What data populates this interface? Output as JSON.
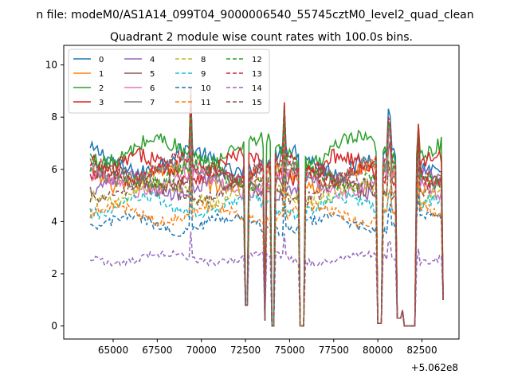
{
  "chart_data": {
    "type": "line",
    "suptitle": "n file: modeM0/AS1A14_099T04_9000006540_55745cztM0_level2_quad_clean",
    "title": "Quadrant 2 module wise count rates with 100.0s bins.",
    "xlabel": "",
    "ylabel": "",
    "x_offset_label": "+5.062e8",
    "xlim": [
      62200,
      84600
    ],
    "ylim": [
      -0.5,
      10.75
    ],
    "x_ticks": [
      65000,
      67500,
      70000,
      72500,
      75000,
      77500,
      80000,
      82500
    ],
    "x_tick_labels": [
      "65000",
      "67500",
      "70000",
      "72500",
      "75000",
      "77500",
      "80000",
      "82500"
    ],
    "y_ticks": [
      0,
      2,
      4,
      6,
      8,
      10
    ],
    "y_tick_labels": [
      "0",
      "2",
      "4",
      "6",
      "8",
      "10"
    ],
    "grid": false,
    "legend_position": "upper-left",
    "legend_columns": 4,
    "x_range": [
      63700,
      83700
    ],
    "bin_seconds": 100.0,
    "dropouts": [
      {
        "start": 72500,
        "end": 72650,
        "value": 0.8
      },
      {
        "start": 73550,
        "end": 73650,
        "value": 0.2
      },
      {
        "start": 74000,
        "end": 74100,
        "value": 0.0
      },
      {
        "start": 75550,
        "end": 75850,
        "value": 0.0
      },
      {
        "start": 80000,
        "end": 80200,
        "value": 0.1
      },
      {
        "start": 81100,
        "end": 81300,
        "value": 0.3
      },
      {
        "start": 81400,
        "end": 81500,
        "value": 0.6
      },
      {
        "start": 81500,
        "end": 82100,
        "value": 0.0
      },
      {
        "start": 83650,
        "end": 83700,
        "value": 1.0
      }
    ],
    "spikes": [
      {
        "x": 69400,
        "factor": 1.35
      },
      {
        "x": 74700,
        "factor": 1.3
      },
      {
        "x": 80650,
        "factor": 1.2
      },
      {
        "x": 82300,
        "factor": 1.15
      }
    ],
    "series": [
      {
        "name": "0",
        "color": "#1f77b4",
        "dashed": false,
        "level": 6.3
      },
      {
        "name": "1",
        "color": "#ff7f0e",
        "dashed": false,
        "level": 5.7
      },
      {
        "name": "2",
        "color": "#2ca02c",
        "dashed": false,
        "level": 6.7
      },
      {
        "name": "3",
        "color": "#d62728",
        "dashed": false,
        "level": 6.1
      },
      {
        "name": "4",
        "color": "#9467bd",
        "dashed": false,
        "level": 5.4
      },
      {
        "name": "5",
        "color": "#8c564b",
        "dashed": false,
        "level": 5.6
      },
      {
        "name": "6",
        "color": "#e377c2",
        "dashed": false,
        "level": 5.5
      },
      {
        "name": "7",
        "color": "#7f7f7f",
        "dashed": false,
        "level": 5.9
      },
      {
        "name": "8",
        "color": "#bcbd22",
        "dashed": true,
        "level": 5.1
      },
      {
        "name": "9",
        "color": "#17becf",
        "dashed": true,
        "level": 4.6
      },
      {
        "name": "10",
        "color": "#1f77b4",
        "dashed": true,
        "level": 3.9
      },
      {
        "name": "11",
        "color": "#ff7f0e",
        "dashed": true,
        "level": 4.3
      },
      {
        "name": "12",
        "color": "#2ca02c",
        "dashed": true,
        "level": 5.8
      },
      {
        "name": "13",
        "color": "#d62728",
        "dashed": true,
        "level": 6.0
      },
      {
        "name": "14",
        "color": "#9467bd",
        "dashed": true,
        "level": 2.6
      },
      {
        "name": "15",
        "color": "#8c564b",
        "dashed": true,
        "level": 5.2
      }
    ]
  }
}
